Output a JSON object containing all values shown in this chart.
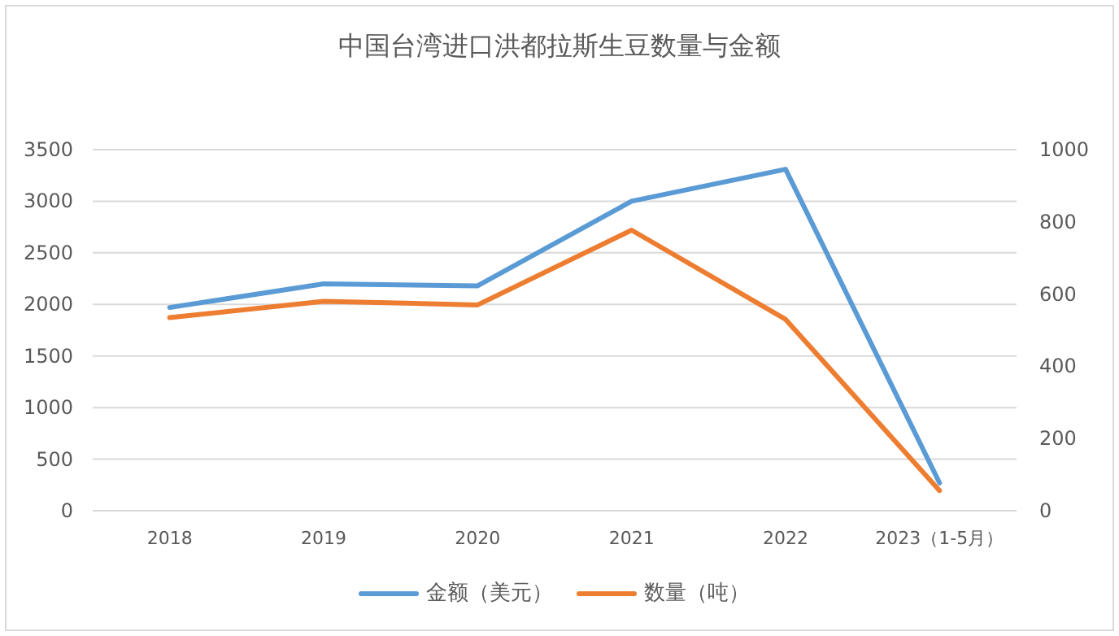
{
  "chart_data": {
    "type": "line",
    "title": "中国台湾进口洪都拉斯生豆数量与金额",
    "categories": [
      "2018",
      "2019",
      "2020",
      "2021",
      "2022",
      "2023（1-5月）"
    ],
    "series": [
      {
        "name": "金额（美元）",
        "color": "#5b9bd5",
        "values": [
          1970,
          2200,
          2180,
          3000,
          3310,
          270
        ]
      },
      {
        "name": "数量（吨）",
        "color": "#ed7d31",
        "axis": "y2",
        "values": [
          535,
          580,
          570,
          777,
          530,
          56
        ]
      }
    ],
    "ylim": [
      0,
      3500
    ],
    "yticks": [
      0,
      500,
      1000,
      1500,
      2000,
      2500,
      3000,
      3500
    ],
    "y2lim": [
      0,
      1000
    ],
    "y2ticks": [
      0,
      200,
      400,
      600,
      800,
      1000
    ],
    "grid": "y",
    "legend": "bottom",
    "marker": "none",
    "line_style": "solid"
  }
}
